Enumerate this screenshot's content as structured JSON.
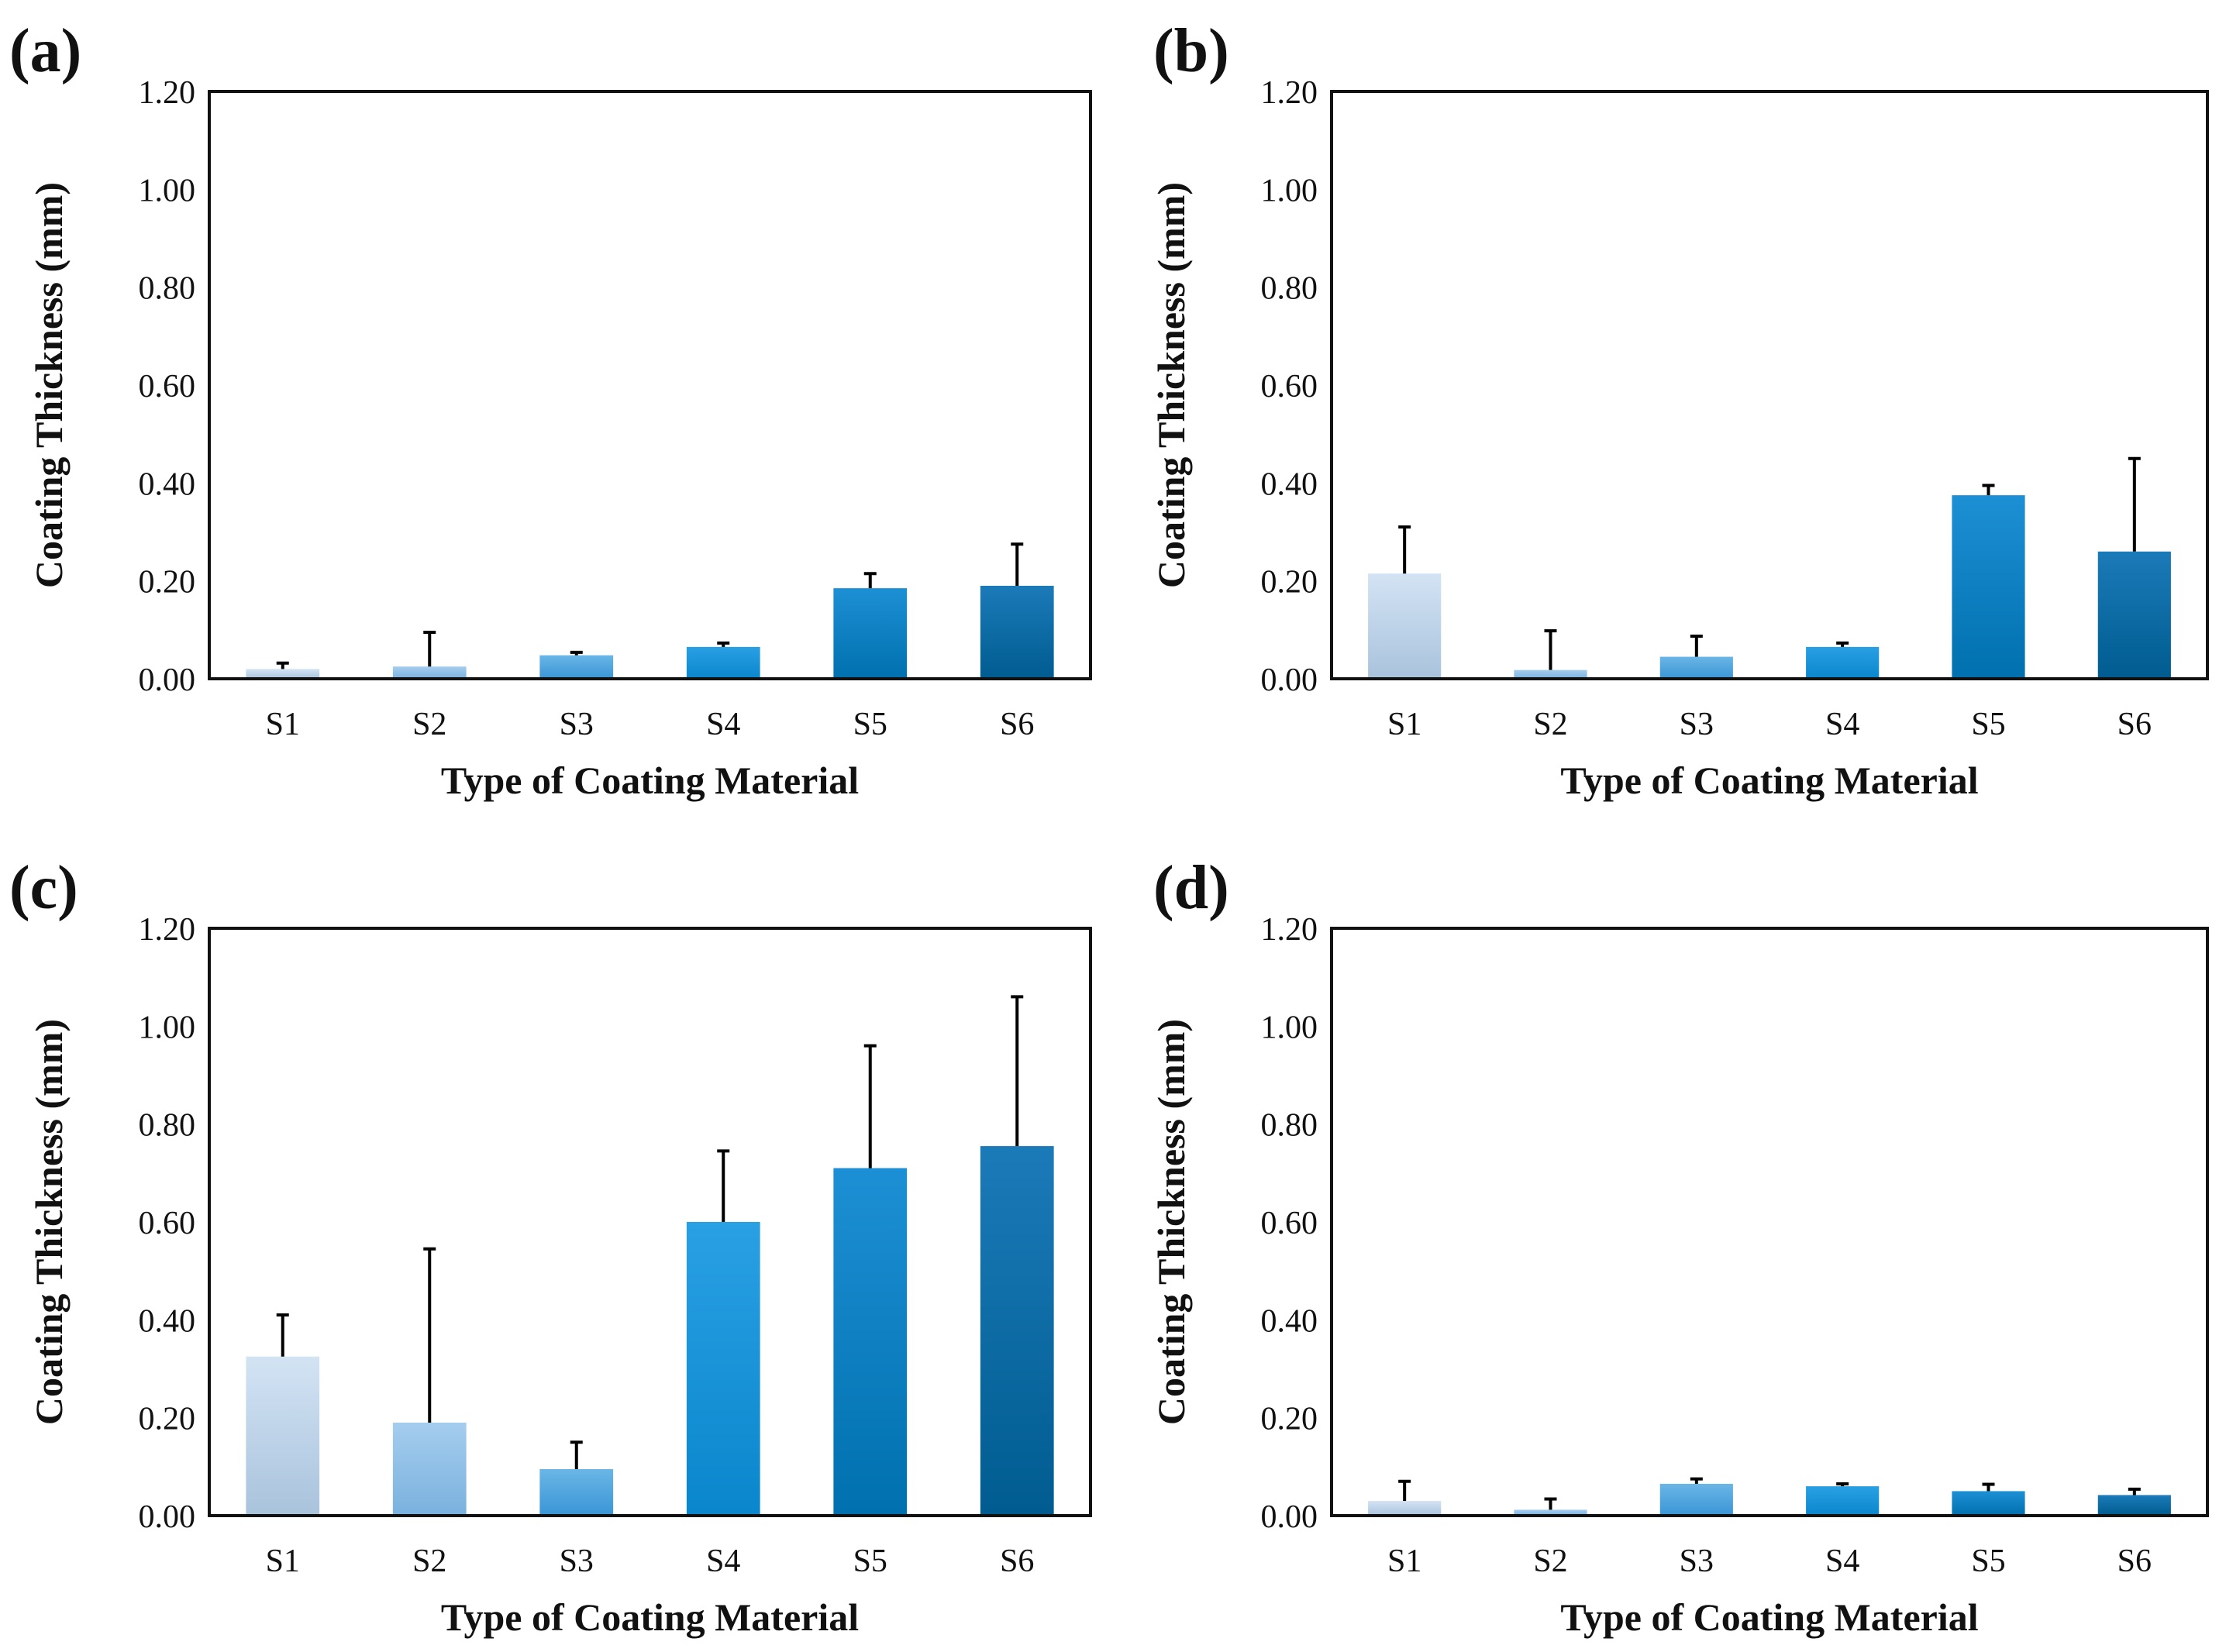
{
  "figure": {
    "colors": {
      "axis": "#111111",
      "error_bar": "#000000",
      "bar_gradients": [
        [
          "#d3e3f4",
          "#a9c3dc"
        ],
        [
          "#a5cdee",
          "#7ab1de"
        ],
        [
          "#6ab6e6",
          "#3a95d6"
        ],
        [
          "#2aa0e4",
          "#0a86cc"
        ],
        [
          "#1d8fd4",
          "#0070ae"
        ],
        [
          "#1b7ab8",
          "#005c90"
        ]
      ]
    }
  },
  "chart_data": [
    {
      "type": "bar",
      "panel_label": "(a)",
      "title": "",
      "xlabel": "Type of Coating Material",
      "ylabel": "Coating Thickness (mm)",
      "ylim": [
        0,
        1.2
      ],
      "yticks": [
        "0.00",
        "0.20",
        "0.40",
        "0.60",
        "0.80",
        "1.00",
        "1.20"
      ],
      "categories": [
        "S1",
        "S2",
        "S3",
        "S4",
        "S5",
        "S6"
      ],
      "values": [
        0.02,
        0.025,
        0.048,
        0.065,
        0.185,
        0.19
      ],
      "error_upper": [
        0.012,
        0.07,
        0.006,
        0.008,
        0.03,
        0.085
      ]
    },
    {
      "type": "bar",
      "panel_label": "(b)",
      "title": "",
      "xlabel": "Type of Coating Material",
      "ylabel": "Coating Thickness (mm)",
      "ylim": [
        0,
        1.2
      ],
      "yticks": [
        "0.00",
        "0.20",
        "0.40",
        "0.60",
        "0.80",
        "1.00",
        "1.20"
      ],
      "categories": [
        "S1",
        "S2",
        "S3",
        "S4",
        "S5",
        "S6"
      ],
      "values": [
        0.215,
        0.018,
        0.045,
        0.065,
        0.375,
        0.26
      ],
      "error_upper": [
        0.095,
        0.08,
        0.042,
        0.008,
        0.02,
        0.19
      ]
    },
    {
      "type": "bar",
      "panel_label": "(c)",
      "title": "",
      "xlabel": "Type of Coating Material",
      "ylabel": "Coating Thickness (mm)",
      "ylim": [
        0,
        1.2
      ],
      "yticks": [
        "0.00",
        "0.20",
        "0.40",
        "0.60",
        "0.80",
        "1.00",
        "1.20"
      ],
      "categories": [
        "S1",
        "S2",
        "S3",
        "S4",
        "S5",
        "S6"
      ],
      "values": [
        0.325,
        0.19,
        0.095,
        0.6,
        0.71,
        0.755
      ],
      "error_upper": [
        0.085,
        0.355,
        0.055,
        0.145,
        0.25,
        0.305
      ]
    },
    {
      "type": "bar",
      "panel_label": "(d)",
      "title": "",
      "xlabel": "Type of Coating Material",
      "ylabel": "Coating Thickness (mm)",
      "ylim": [
        0,
        1.2
      ],
      "yticks": [
        "0.00",
        "0.20",
        "0.40",
        "0.60",
        "0.80",
        "1.00",
        "1.20"
      ],
      "categories": [
        "S1",
        "S2",
        "S3",
        "S4",
        "S5",
        "S6"
      ],
      "values": [
        0.03,
        0.012,
        0.065,
        0.06,
        0.05,
        0.042
      ],
      "error_upper": [
        0.04,
        0.022,
        0.01,
        0.005,
        0.014,
        0.012
      ]
    }
  ]
}
